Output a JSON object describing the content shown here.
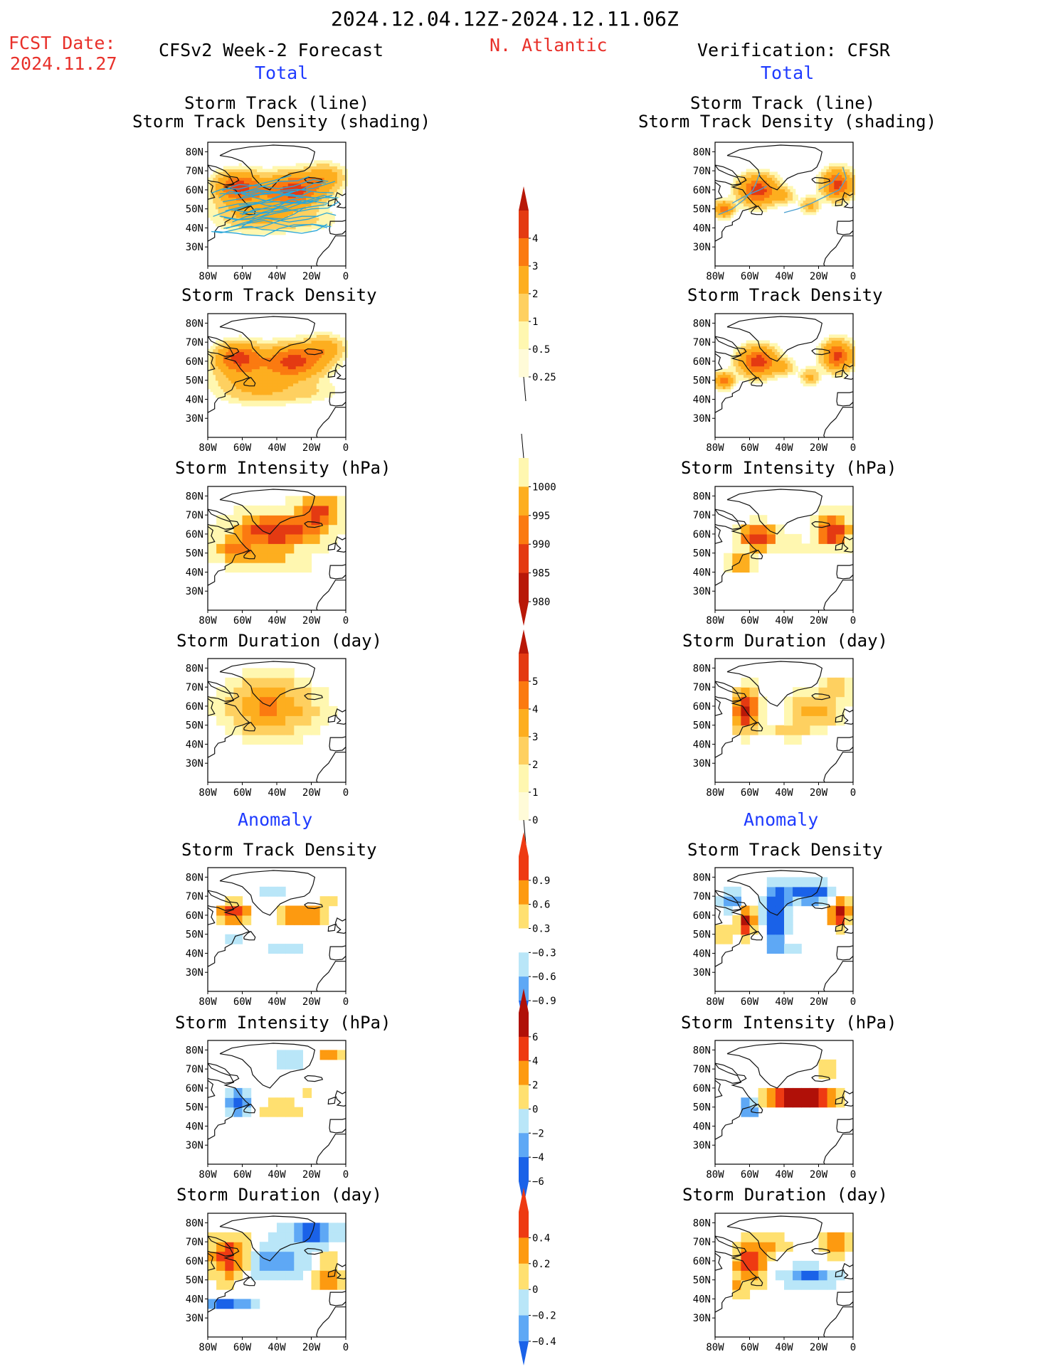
{
  "header": {
    "period": "2024.12.04.12Z-2024.12.11.06Z",
    "fcst_label": "FCST Date:",
    "fcst_date": "2024.11.27",
    "left_title": "CFSv2 Week-2 Forecast",
    "region": "N. Atlantic",
    "right_title": "Verification: CFSR",
    "total_label": "Total",
    "anomaly_label": "Anomaly"
  },
  "axes": {
    "lat_ticks": [
      "80N",
      "70N",
      "60N",
      "50N",
      "40N",
      "30N"
    ],
    "lon_ticks": [
      "80W",
      "60W",
      "40W",
      "20W",
      "0"
    ]
  },
  "panel_titles": {
    "track_line": "Storm Track (line)",
    "track_shading": "Storm Track Density (shading)",
    "density": "Storm Track Density",
    "intensity": "Storm Intensity (hPa)",
    "duration": "Storm Duration (day)"
  },
  "colorbars": {
    "density_total": [
      "4",
      "3",
      "2",
      "1",
      "0.5",
      "0.25"
    ],
    "intensity_total": [
      "1000",
      "995",
      "990",
      "985",
      "980"
    ],
    "duration_total": [
      "5",
      "4",
      "3",
      "2",
      "1",
      "0"
    ],
    "density_anom": [
      "0.9",
      "0.6",
      "0.3",
      "−0.3",
      "−0.6",
      "−0.9"
    ],
    "intensity_anom": [
      "6",
      "4",
      "2",
      "0",
      "−2",
      "−4",
      "−6"
    ],
    "duration_anom": [
      "0.4",
      "0.2",
      "0",
      "−0.2",
      "−0.4"
    ]
  },
  "colors": {
    "total_ramp": [
      "#fff7b0",
      "#fed060",
      "#fdae1f",
      "#fb7a10",
      "#e43a12",
      "#b81808"
    ],
    "anom_ramp": [
      "#1a62e8",
      "#5ea8f5",
      "#b9e6f8",
      "#ffffff",
      "#ffe070",
      "#fd9a10",
      "#ee3a12",
      "#b01008"
    ]
  }
}
